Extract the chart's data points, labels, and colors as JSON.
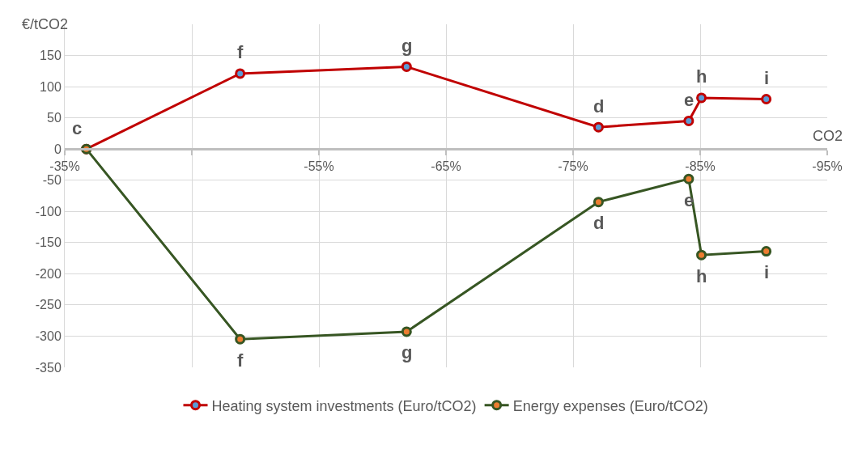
{
  "chart_data": {
    "type": "line",
    "xlabel": "CO2",
    "ylabel": "€/tCO2",
    "x": [
      -36.7,
      -48.8,
      -61.9,
      -77.0,
      -84.1,
      -85.1,
      -90.2
    ],
    "series": [
      {
        "name": "Heating system investments (Euro/tCO2)",
        "color": "#c00000",
        "values": [
          0,
          121,
          132,
          35,
          45,
          82,
          80
        ]
      },
      {
        "name": "Energy expenses (Euro/tCO2)",
        "color": "#375623",
        "values": [
          0,
          -305,
          -293,
          -85,
          -48,
          -170,
          -164
        ]
      }
    ],
    "xlim": [
      -35,
      -95
    ],
    "xticks": [
      {
        "value": -35,
        "label": "-35%"
      },
      {
        "value": -45,
        "label": null
      },
      {
        "value": -55,
        "label": "-55%"
      },
      {
        "value": -65,
        "label": "-65%"
      },
      {
        "value": -75,
        "label": "-75%"
      },
      {
        "value": -85,
        "label": "-85%"
      },
      {
        "value": -95,
        "label": "-95%"
      }
    ],
    "ylim": [
      -350,
      200
    ],
    "yticks": [
      -350,
      -300,
      -250,
      -200,
      -150,
      -100,
      -50,
      0,
      50,
      100,
      150
    ],
    "annotations": [
      {
        "text": "c",
        "x": -36.7,
        "y": 0
      },
      {
        "text": "f",
        "x": -48.8,
        "y": 121
      },
      {
        "text": "g",
        "x": -61.9,
        "y": 132
      },
      {
        "text": "d",
        "x": -77.0,
        "y": 35
      },
      {
        "text": "e",
        "x": -84.1,
        "y": 45
      },
      {
        "text": "h",
        "x": -85.1,
        "y": 82
      },
      {
        "text": "i",
        "x": -90.2,
        "y": 80
      },
      {
        "text": "f",
        "x": -48.8,
        "y": -305
      },
      {
        "text": "g",
        "x": -61.9,
        "y": -293
      },
      {
        "text": "d",
        "x": -77.0,
        "y": -85
      },
      {
        "text": "e",
        "x": -84.1,
        "y": -48
      },
      {
        "text": "h",
        "x": -85.1,
        "y": -170
      },
      {
        "text": "i",
        "x": -90.2,
        "y": -164
      }
    ],
    "grid": true,
    "legend": "bottom",
    "marker": "circle",
    "line_style": "solid"
  }
}
